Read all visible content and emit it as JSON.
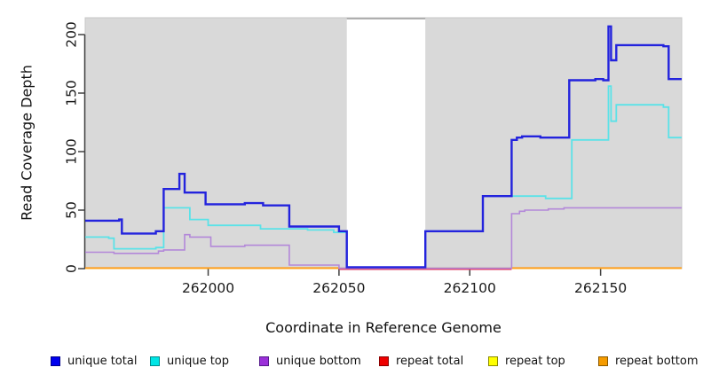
{
  "chart_data": {
    "type": "line",
    "subtype": "step-after",
    "title": "",
    "xlabel": "Coordinate in Reference Genome",
    "ylabel": "Read Coverage Depth",
    "xlim": [
      261953,
      262181
    ],
    "ylim": [
      0,
      210
    ],
    "x_ticks": [
      262000,
      262050,
      262100,
      262150
    ],
    "y_ticks": [
      0,
      50,
      100,
      150,
      200
    ],
    "grid": false,
    "plot_background": "#d9d9d9",
    "masked_region": {
      "from": 262053,
      "to": 262083,
      "color": "#ffffff",
      "cap_color": "#a0a0a0"
    },
    "axis_color": "#404040",
    "tick_label_color": "#1a1a1a",
    "legend_position": "bottom",
    "series": [
      {
        "name": "unique total",
        "color": "#2323dd",
        "width": 2.4,
        "points": [
          [
            261953,
            41
          ],
          [
            261966,
            42
          ],
          [
            261967,
            30
          ],
          [
            261980,
            32
          ],
          [
            261983,
            68
          ],
          [
            261989,
            81
          ],
          [
            261991,
            65
          ],
          [
            261999,
            55
          ],
          [
            262014,
            56
          ],
          [
            262021,
            54
          ],
          [
            262031,
            36
          ],
          [
            262050,
            32
          ],
          [
            262053,
            0
          ],
          [
            262083,
            32
          ],
          [
            262105,
            62
          ],
          [
            262116,
            110
          ],
          [
            262118,
            112
          ],
          [
            262120,
            113
          ],
          [
            262127,
            112
          ],
          [
            262138,
            161
          ],
          [
            262148,
            162
          ],
          [
            262151,
            161
          ],
          [
            262153,
            207
          ],
          [
            262154,
            178
          ],
          [
            262156,
            191
          ],
          [
            262174,
            190
          ],
          [
            262176,
            162
          ],
          [
            262181,
            162
          ]
        ]
      },
      {
        "name": "unique top",
        "color": "#5ae2e8",
        "width": 1.8,
        "points": [
          [
            261953,
            27
          ],
          [
            261962,
            26
          ],
          [
            261964,
            17
          ],
          [
            261980,
            18
          ],
          [
            261983,
            52
          ],
          [
            261993,
            42
          ],
          [
            262000,
            37
          ],
          [
            262020,
            34
          ],
          [
            262038,
            33
          ],
          [
            262048,
            31
          ],
          [
            262053,
            0
          ],
          [
            262083,
            32
          ],
          [
            262105,
            62
          ],
          [
            262129,
            60
          ],
          [
            262139,
            110
          ],
          [
            262153,
            156
          ],
          [
            262154,
            126
          ],
          [
            262156,
            140
          ],
          [
            262174,
            138
          ],
          [
            262176,
            112
          ],
          [
            262181,
            112
          ]
        ]
      },
      {
        "name": "unique bottom",
        "color": "#b388d9",
        "width": 1.6,
        "points": [
          [
            261953,
            14
          ],
          [
            261964,
            13
          ],
          [
            261981,
            15
          ],
          [
            261983,
            16
          ],
          [
            261991,
            29
          ],
          [
            261993,
            27
          ],
          [
            262001,
            19
          ],
          [
            262014,
            20
          ],
          [
            262031,
            3
          ],
          [
            262050,
            0
          ],
          [
            262116,
            47
          ],
          [
            262119,
            49
          ],
          [
            262121,
            50
          ],
          [
            262130,
            51
          ],
          [
            262136,
            52
          ],
          [
            262181,
            52
          ]
        ]
      },
      {
        "name": "repeat total",
        "color": "#e03e62",
        "width": 1.6,
        "points": [
          [
            261953,
            0
          ],
          [
            262181,
            0
          ]
        ],
        "visible_range": [
          262050,
          262116
        ]
      },
      {
        "name": "repeat top",
        "color": "#ffff00",
        "width": 1.6,
        "points": [
          [
            261953,
            0
          ],
          [
            262181,
            0
          ]
        ]
      },
      {
        "name": "repeat bottom",
        "color": "#ff9f1f",
        "width": 2.0,
        "points": [
          [
            261953,
            0
          ],
          [
            262181,
            0
          ]
        ],
        "gap_range": [
          262050,
          262116
        ]
      }
    ],
    "legend": {
      "items": [
        {
          "label": "unique total",
          "fill": "#0000ee",
          "border": "#00008b"
        },
        {
          "label": "unique top",
          "fill": "#00e5e5",
          "border": "#008b8b"
        },
        {
          "label": "unique bottom",
          "fill": "#9b30d9",
          "border": "#551a8b"
        },
        {
          "label": "repeat total",
          "fill": "#ee0000",
          "border": "#8b0000"
        },
        {
          "label": "repeat top",
          "fill": "#ffff00",
          "border": "#8b8b00"
        },
        {
          "label": "repeat bottom",
          "fill": "#f59b00",
          "border": "#8b5a00"
        }
      ]
    }
  }
}
